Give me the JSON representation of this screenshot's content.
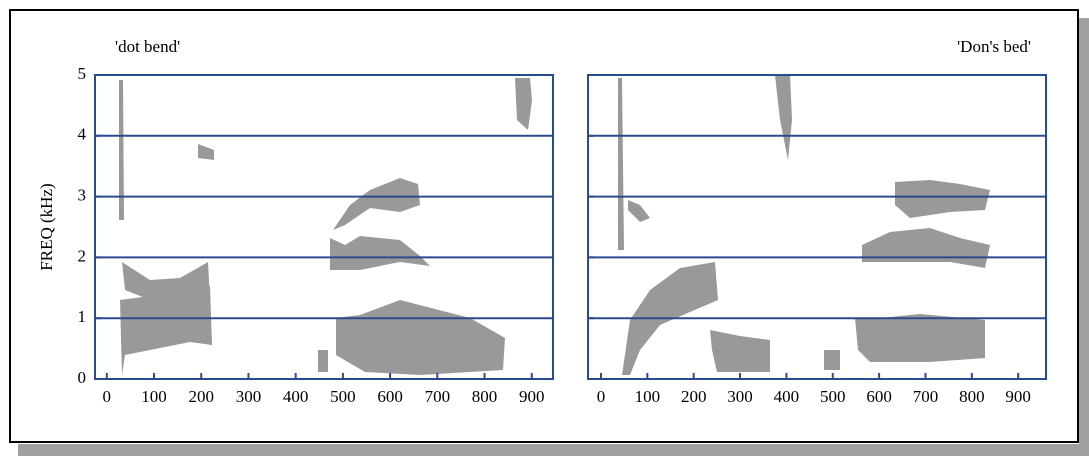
{
  "chart_data": [
    {
      "type": "spectrogram",
      "title": "'dot bend'",
      "ylabel": "FREQ (kHz)",
      "xlim": [
        -25,
        945
      ],
      "ylim": [
        0,
        5
      ],
      "xticks": [
        0,
        100,
        200,
        300,
        400,
        500,
        600,
        700,
        800,
        900
      ],
      "yticks": [
        0,
        1,
        2,
        3,
        4,
        5
      ],
      "ytick_labels": true,
      "grid": true,
      "color": "#999999"
    },
    {
      "type": "spectrogram",
      "title": "'Don's bed'",
      "xlim": [
        -28,
        960
      ],
      "ylim": [
        0,
        5
      ],
      "xticks": [
        0,
        100,
        200,
        300,
        400,
        500,
        600,
        700,
        800,
        900
      ],
      "yticks": [
        0,
        1,
        2,
        3,
        4,
        5
      ],
      "ytick_labels": false,
      "grid": true,
      "color": "#999999"
    }
  ]
}
